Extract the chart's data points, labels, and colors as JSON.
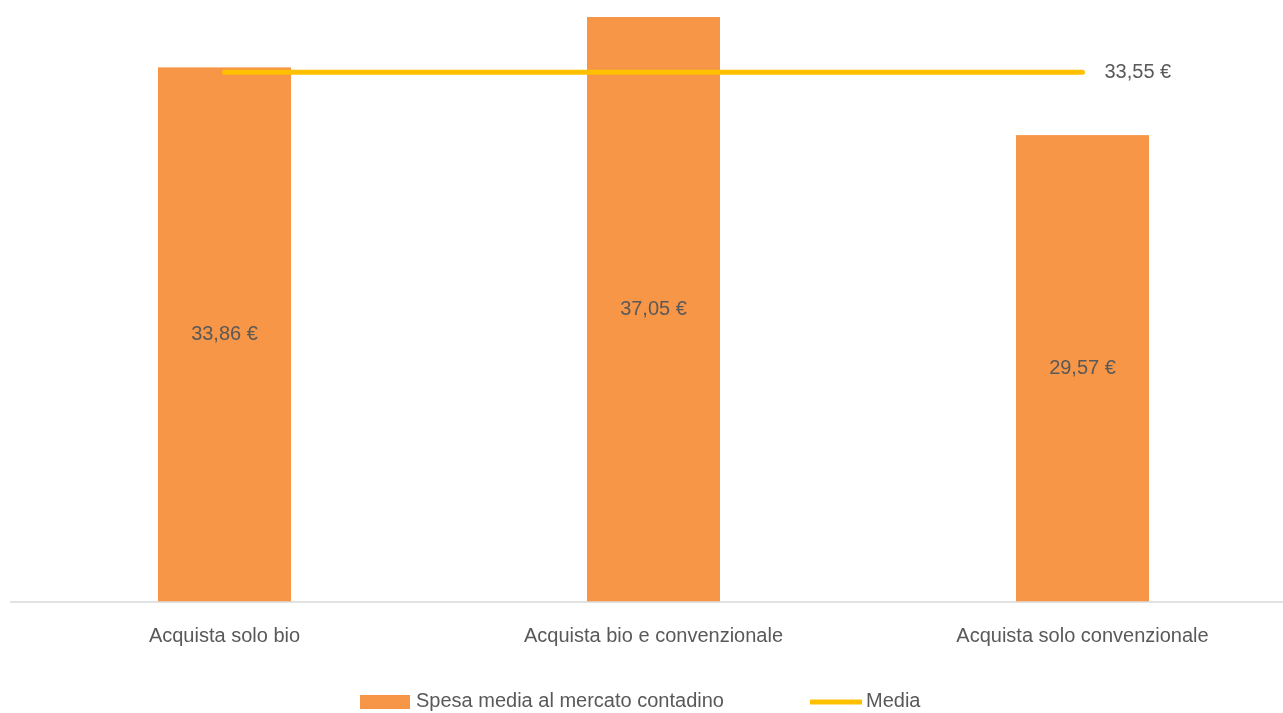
{
  "chart_data": {
    "type": "bar",
    "categories": [
      "Acquista solo bio",
      "Acquista bio e convenzionale",
      "Acquista solo convenzionale"
    ],
    "series": [
      {
        "name": "Spesa media al mercato contadino",
        "color": "#f79646",
        "values": [
          33.86,
          37.05,
          29.57
        ],
        "value_labels": [
          "33,86 €",
          "37,05 €",
          "29,57 €"
        ]
      },
      {
        "name": "Media",
        "type": "line",
        "color": "#ffc000",
        "values": [
          33.55,
          33.55,
          33.55
        ],
        "value_labels": [
          null,
          null,
          "33,55 €"
        ]
      }
    ],
    "legend": "bottom"
  }
}
